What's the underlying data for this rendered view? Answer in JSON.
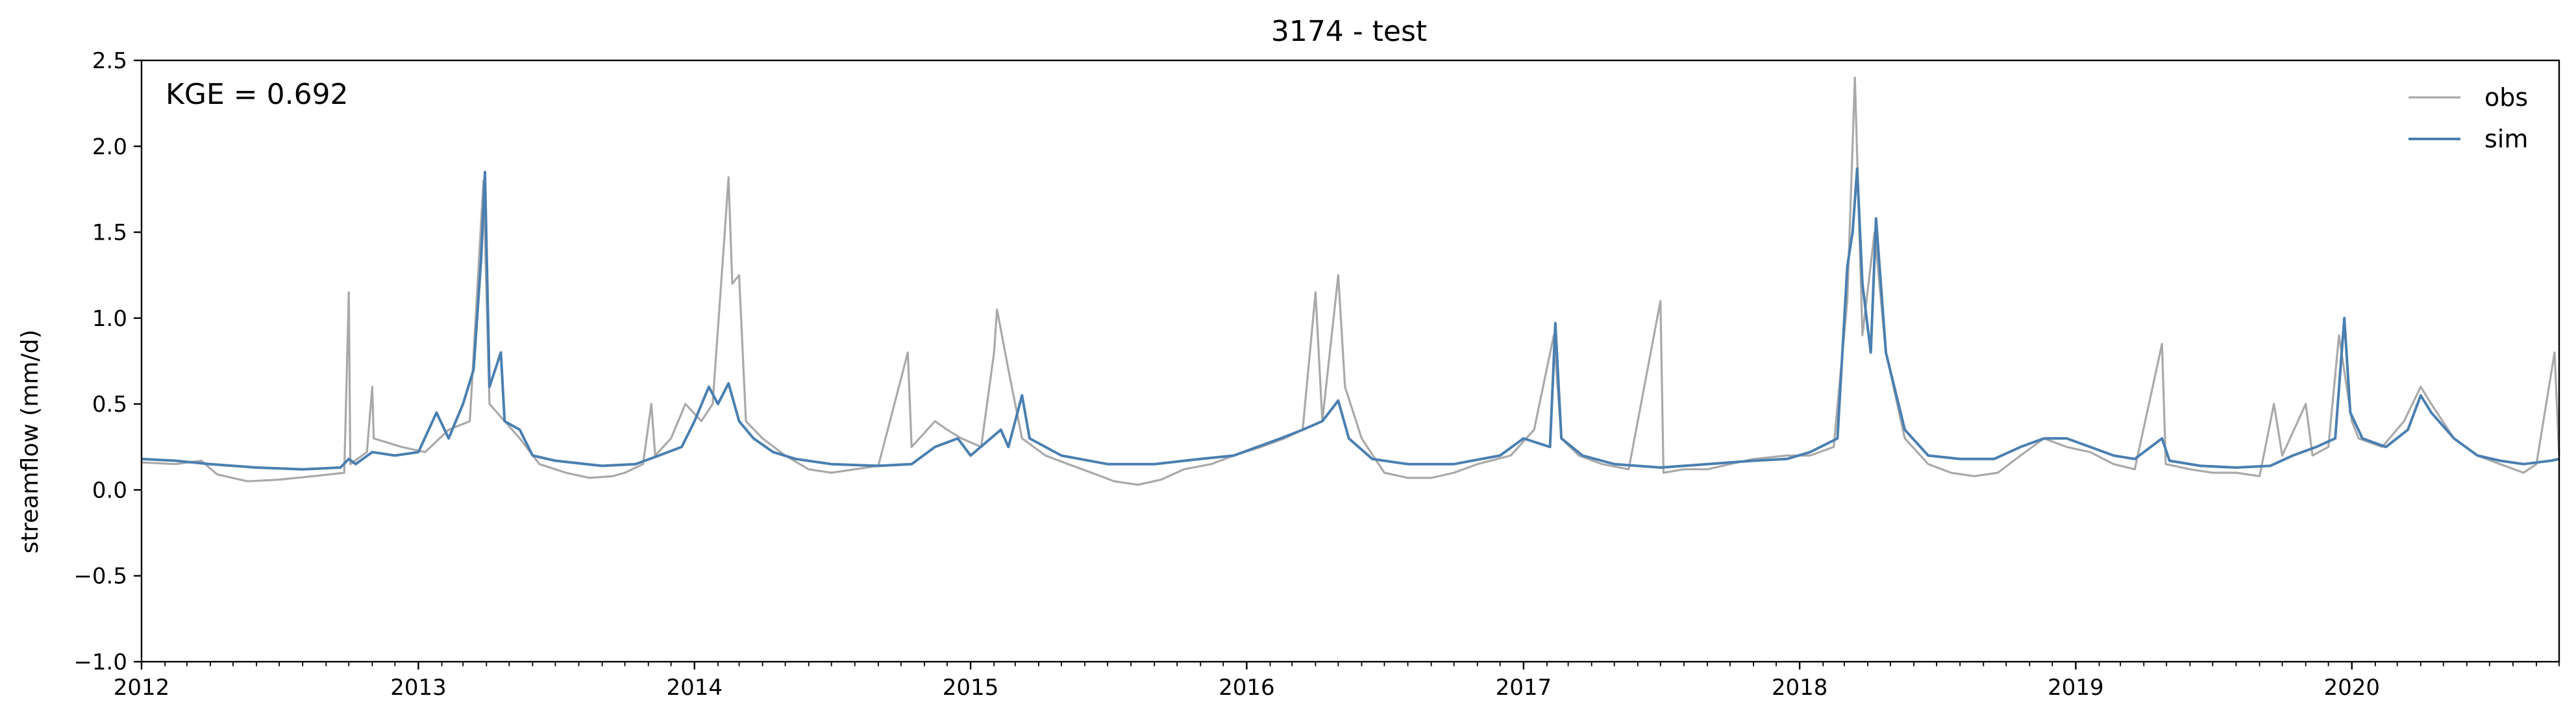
{
  "chart_data": {
    "type": "line",
    "title": "3174 - test",
    "xlabel": "",
    "ylabel": "streamflow (mm/d)",
    "xlim": [
      "2012-01-01",
      "2020-10-01"
    ],
    "ylim": [
      -1.0,
      2.5
    ],
    "yticks": [
      -1.0,
      -0.5,
      0.0,
      0.5,
      1.0,
      1.5,
      2.0,
      2.5
    ],
    "ytick_labels": [
      "−1.0",
      "−0.5",
      "0.0",
      "0.5",
      "1.0",
      "1.5",
      "2.0",
      "2.5"
    ],
    "xticks": [
      "2012-01-01",
      "2013-01-01",
      "2014-01-01",
      "2015-01-01",
      "2016-01-01",
      "2017-01-01",
      "2018-01-01",
      "2019-01-01",
      "2020-01-01"
    ],
    "xtick_labels": [
      "2012",
      "2013",
      "2014",
      "2015",
      "2016",
      "2017",
      "2018",
      "2019",
      "2020"
    ],
    "grid": false,
    "legend_position": "top-right",
    "annotation": "KGE = 0.692",
    "series": [
      {
        "name": "obs",
        "color": "#a9a9a9",
        "points": [
          [
            "2012-01-01",
            0.16
          ],
          [
            "2012-02-15",
            0.15
          ],
          [
            "2012-03-20",
            0.17
          ],
          [
            "2012-04-10",
            0.09
          ],
          [
            "2012-05-20",
            0.05
          ],
          [
            "2012-07-01",
            0.06
          ],
          [
            "2012-08-15",
            0.08
          ],
          [
            "2012-09-25",
            0.1
          ],
          [
            "2012-10-01",
            1.15
          ],
          [
            "2012-10-03",
            0.15
          ],
          [
            "2012-10-25",
            0.22
          ],
          [
            "2012-11-01",
            0.6
          ],
          [
            "2012-11-03",
            0.3
          ],
          [
            "2012-12-10",
            0.25
          ],
          [
            "2013-01-10",
            0.22
          ],
          [
            "2013-02-10",
            0.35
          ],
          [
            "2013-03-10",
            0.4
          ],
          [
            "2013-03-28",
            1.8
          ],
          [
            "2013-04-05",
            0.5
          ],
          [
            "2013-04-25",
            0.4
          ],
          [
            "2013-05-15",
            0.3
          ],
          [
            "2013-06-10",
            0.15
          ],
          [
            "2013-07-15",
            0.1
          ],
          [
            "2013-08-15",
            0.07
          ],
          [
            "2013-09-15",
            0.08
          ],
          [
            "2013-10-01",
            0.1
          ],
          [
            "2013-10-25",
            0.15
          ],
          [
            "2013-11-05",
            0.5
          ],
          [
            "2013-11-10",
            0.2
          ],
          [
            "2013-12-01",
            0.3
          ],
          [
            "2013-12-20",
            0.5
          ],
          [
            "2014-01-10",
            0.4
          ],
          [
            "2014-01-25",
            0.5
          ],
          [
            "2014-02-10",
            1.5
          ],
          [
            "2014-02-15",
            1.82
          ],
          [
            "2014-02-20",
            1.2
          ],
          [
            "2014-03-01",
            1.25
          ],
          [
            "2014-03-10",
            0.4
          ],
          [
            "2014-04-01",
            0.3
          ],
          [
            "2014-05-01",
            0.2
          ],
          [
            "2014-06-01",
            0.12
          ],
          [
            "2014-07-01",
            0.1
          ],
          [
            "2014-08-01",
            0.12
          ],
          [
            "2014-09-01",
            0.14
          ],
          [
            "2014-10-10",
            0.8
          ],
          [
            "2014-10-15",
            0.25
          ],
          [
            "2014-11-15",
            0.4
          ],
          [
            "2014-12-01",
            0.35
          ],
          [
            "2014-12-20",
            0.3
          ],
          [
            "2015-01-15",
            0.25
          ],
          [
            "2015-02-01",
            0.8
          ],
          [
            "2015-02-05",
            1.05
          ],
          [
            "2015-02-20",
            0.7
          ],
          [
            "2015-03-10",
            0.3
          ],
          [
            "2015-04-10",
            0.2
          ],
          [
            "2015-05-10",
            0.15
          ],
          [
            "2015-06-10",
            0.1
          ],
          [
            "2015-07-10",
            0.05
          ],
          [
            "2015-08-10",
            0.03
          ],
          [
            "2015-09-10",
            0.06
          ],
          [
            "2015-10-10",
            0.12
          ],
          [
            "2015-11-15",
            0.15
          ],
          [
            "2015-12-15",
            0.2
          ],
          [
            "2016-01-20",
            0.25
          ],
          [
            "2016-02-20",
            0.3
          ],
          [
            "2016-03-15",
            0.35
          ],
          [
            "2016-04-01",
            1.15
          ],
          [
            "2016-04-10",
            0.4
          ],
          [
            "2016-05-01",
            1.25
          ],
          [
            "2016-05-10",
            0.6
          ],
          [
            "2016-06-01",
            0.3
          ],
          [
            "2016-07-01",
            0.1
          ],
          [
            "2016-08-01",
            0.07
          ],
          [
            "2016-09-01",
            0.07
          ],
          [
            "2016-10-01",
            0.1
          ],
          [
            "2016-11-01",
            0.15
          ],
          [
            "2016-12-15",
            0.2
          ],
          [
            "2017-01-15",
            0.35
          ],
          [
            "2017-02-10",
            0.9
          ],
          [
            "2017-02-20",
            0.3
          ],
          [
            "2017-03-15",
            0.2
          ],
          [
            "2017-04-15",
            0.15
          ],
          [
            "2017-05-20",
            0.12
          ],
          [
            "2017-07-01",
            1.1
          ],
          [
            "2017-07-05",
            0.1
          ],
          [
            "2017-08-01",
            0.12
          ],
          [
            "2017-09-01",
            0.12
          ],
          [
            "2017-10-01",
            0.15
          ],
          [
            "2017-11-01",
            0.18
          ],
          [
            "2017-12-15",
            0.2
          ],
          [
            "2018-01-15",
            0.2
          ],
          [
            "2018-02-15",
            0.25
          ],
          [
            "2018-03-05",
            1.1
          ],
          [
            "2018-03-15",
            2.4
          ],
          [
            "2018-03-25",
            0.9
          ],
          [
            "2018-04-10",
            1.5
          ],
          [
            "2018-04-25",
            0.8
          ],
          [
            "2018-05-20",
            0.3
          ],
          [
            "2018-06-20",
            0.15
          ],
          [
            "2018-07-20",
            0.1
          ],
          [
            "2018-08-20",
            0.08
          ],
          [
            "2018-09-20",
            0.1
          ],
          [
            "2018-10-20",
            0.2
          ],
          [
            "2018-11-20",
            0.3
          ],
          [
            "2018-12-20",
            0.25
          ],
          [
            "2019-01-20",
            0.22
          ],
          [
            "2019-02-20",
            0.15
          ],
          [
            "2019-03-20",
            0.12
          ],
          [
            "2019-04-25",
            0.85
          ],
          [
            "2019-04-30",
            0.15
          ],
          [
            "2019-06-01",
            0.12
          ],
          [
            "2019-07-01",
            0.1
          ],
          [
            "2019-08-01",
            0.1
          ],
          [
            "2019-09-01",
            0.08
          ],
          [
            "2019-09-20",
            0.5
          ],
          [
            "2019-10-01",
            0.2
          ],
          [
            "2019-11-01",
            0.5
          ],
          [
            "2019-11-10",
            0.2
          ],
          [
            "2019-12-01",
            0.25
          ],
          [
            "2019-12-15",
            0.9
          ],
          [
            "2020-01-01",
            0.4
          ],
          [
            "2020-01-10",
            0.3
          ],
          [
            "2020-02-10",
            0.25
          ],
          [
            "2020-03-10",
            0.4
          ],
          [
            "2020-04-01",
            0.6
          ],
          [
            "2020-04-15",
            0.5
          ],
          [
            "2020-05-15",
            0.3
          ],
          [
            "2020-06-15",
            0.2
          ],
          [
            "2020-07-15",
            0.15
          ],
          [
            "2020-08-15",
            0.1
          ],
          [
            "2020-09-01",
            0.15
          ],
          [
            "2020-09-25",
            0.8
          ],
          [
            "2020-10-01",
            0.2
          ]
        ]
      },
      {
        "name": "sim",
        "color": "#4a7fb0",
        "points": [
          [
            "2012-01-01",
            0.18
          ],
          [
            "2012-02-15",
            0.17
          ],
          [
            "2012-04-01",
            0.15
          ],
          [
            "2012-06-01",
            0.13
          ],
          [
            "2012-08-01",
            0.12
          ],
          [
            "2012-09-20",
            0.13
          ],
          [
            "2012-10-01",
            0.18
          ],
          [
            "2012-10-10",
            0.15
          ],
          [
            "2012-11-01",
            0.22
          ],
          [
            "2012-12-01",
            0.2
          ],
          [
            "2013-01-01",
            0.22
          ],
          [
            "2013-01-25",
            0.45
          ],
          [
            "2013-02-10",
            0.3
          ],
          [
            "2013-03-01",
            0.5
          ],
          [
            "2013-03-15",
            0.7
          ],
          [
            "2013-03-25",
            1.35
          ],
          [
            "2013-03-30",
            1.85
          ],
          [
            "2013-04-05",
            0.6
          ],
          [
            "2013-04-20",
            0.8
          ],
          [
            "2013-04-25",
            0.4
          ],
          [
            "2013-05-15",
            0.35
          ],
          [
            "2013-06-01",
            0.2
          ],
          [
            "2013-07-01",
            0.17
          ],
          [
            "2013-09-01",
            0.14
          ],
          [
            "2013-10-15",
            0.15
          ],
          [
            "2013-11-15",
            0.2
          ],
          [
            "2013-12-15",
            0.25
          ],
          [
            "2014-01-01",
            0.4
          ],
          [
            "2014-01-20",
            0.6
          ],
          [
            "2014-02-01",
            0.5
          ],
          [
            "2014-02-15",
            0.62
          ],
          [
            "2014-03-01",
            0.4
          ],
          [
            "2014-03-20",
            0.3
          ],
          [
            "2014-04-15",
            0.22
          ],
          [
            "2014-05-15",
            0.18
          ],
          [
            "2014-07-01",
            0.15
          ],
          [
            "2014-09-01",
            0.14
          ],
          [
            "2014-10-15",
            0.15
          ],
          [
            "2014-11-15",
            0.25
          ],
          [
            "2014-12-15",
            0.3
          ],
          [
            "2015-01-01",
            0.2
          ],
          [
            "2015-02-10",
            0.35
          ],
          [
            "2015-02-20",
            0.25
          ],
          [
            "2015-03-10",
            0.55
          ],
          [
            "2015-03-20",
            0.3
          ],
          [
            "2015-05-01",
            0.2
          ],
          [
            "2015-07-01",
            0.15
          ],
          [
            "2015-09-01",
            0.15
          ],
          [
            "2015-11-01",
            0.18
          ],
          [
            "2015-12-15",
            0.2
          ],
          [
            "2016-01-15",
            0.25
          ],
          [
            "2016-02-15",
            0.3
          ],
          [
            "2016-03-15",
            0.35
          ],
          [
            "2016-04-10",
            0.4
          ],
          [
            "2016-05-01",
            0.52
          ],
          [
            "2016-05-15",
            0.3
          ],
          [
            "2016-06-15",
            0.18
          ],
          [
            "2016-08-01",
            0.15
          ],
          [
            "2016-10-01",
            0.15
          ],
          [
            "2016-12-01",
            0.2
          ],
          [
            "2017-01-01",
            0.3
          ],
          [
            "2017-02-05",
            0.25
          ],
          [
            "2017-02-12",
            0.97
          ],
          [
            "2017-02-20",
            0.3
          ],
          [
            "2017-03-20",
            0.2
          ],
          [
            "2017-05-01",
            0.15
          ],
          [
            "2017-07-01",
            0.13
          ],
          [
            "2017-09-01",
            0.15
          ],
          [
            "2017-11-01",
            0.17
          ],
          [
            "2017-12-15",
            0.18
          ],
          [
            "2018-01-15",
            0.22
          ],
          [
            "2018-02-20",
            0.3
          ],
          [
            "2018-03-05",
            1.3
          ],
          [
            "2018-03-12",
            1.5
          ],
          [
            "2018-03-18",
            1.87
          ],
          [
            "2018-03-25",
            1.2
          ],
          [
            "2018-04-05",
            0.8
          ],
          [
            "2018-04-12",
            1.58
          ],
          [
            "2018-04-25",
            0.8
          ],
          [
            "2018-05-20",
            0.35
          ],
          [
            "2018-06-20",
            0.2
          ],
          [
            "2018-08-01",
            0.18
          ],
          [
            "2018-09-15",
            0.18
          ],
          [
            "2018-10-20",
            0.25
          ],
          [
            "2018-11-20",
            0.3
          ],
          [
            "2018-12-20",
            0.3
          ],
          [
            "2019-01-20",
            0.25
          ],
          [
            "2019-02-20",
            0.2
          ],
          [
            "2019-03-20",
            0.18
          ],
          [
            "2019-04-25",
            0.3
          ],
          [
            "2019-05-05",
            0.17
          ],
          [
            "2019-06-15",
            0.14
          ],
          [
            "2019-08-01",
            0.13
          ],
          [
            "2019-09-15",
            0.14
          ],
          [
            "2019-10-15",
            0.2
          ],
          [
            "2019-11-15",
            0.25
          ],
          [
            "2019-12-10",
            0.3
          ],
          [
            "2019-12-22",
            1.0
          ],
          [
            "2019-12-30",
            0.45
          ],
          [
            "2020-01-15",
            0.3
          ],
          [
            "2020-02-15",
            0.25
          ],
          [
            "2020-03-15",
            0.35
          ],
          [
            "2020-04-01",
            0.55
          ],
          [
            "2020-04-15",
            0.45
          ],
          [
            "2020-05-15",
            0.3
          ],
          [
            "2020-06-15",
            0.2
          ],
          [
            "2020-07-15",
            0.17
          ],
          [
            "2020-08-15",
            0.15
          ],
          [
            "2020-09-20",
            0.17
          ],
          [
            "2020-10-01",
            0.18
          ]
        ]
      }
    ]
  }
}
